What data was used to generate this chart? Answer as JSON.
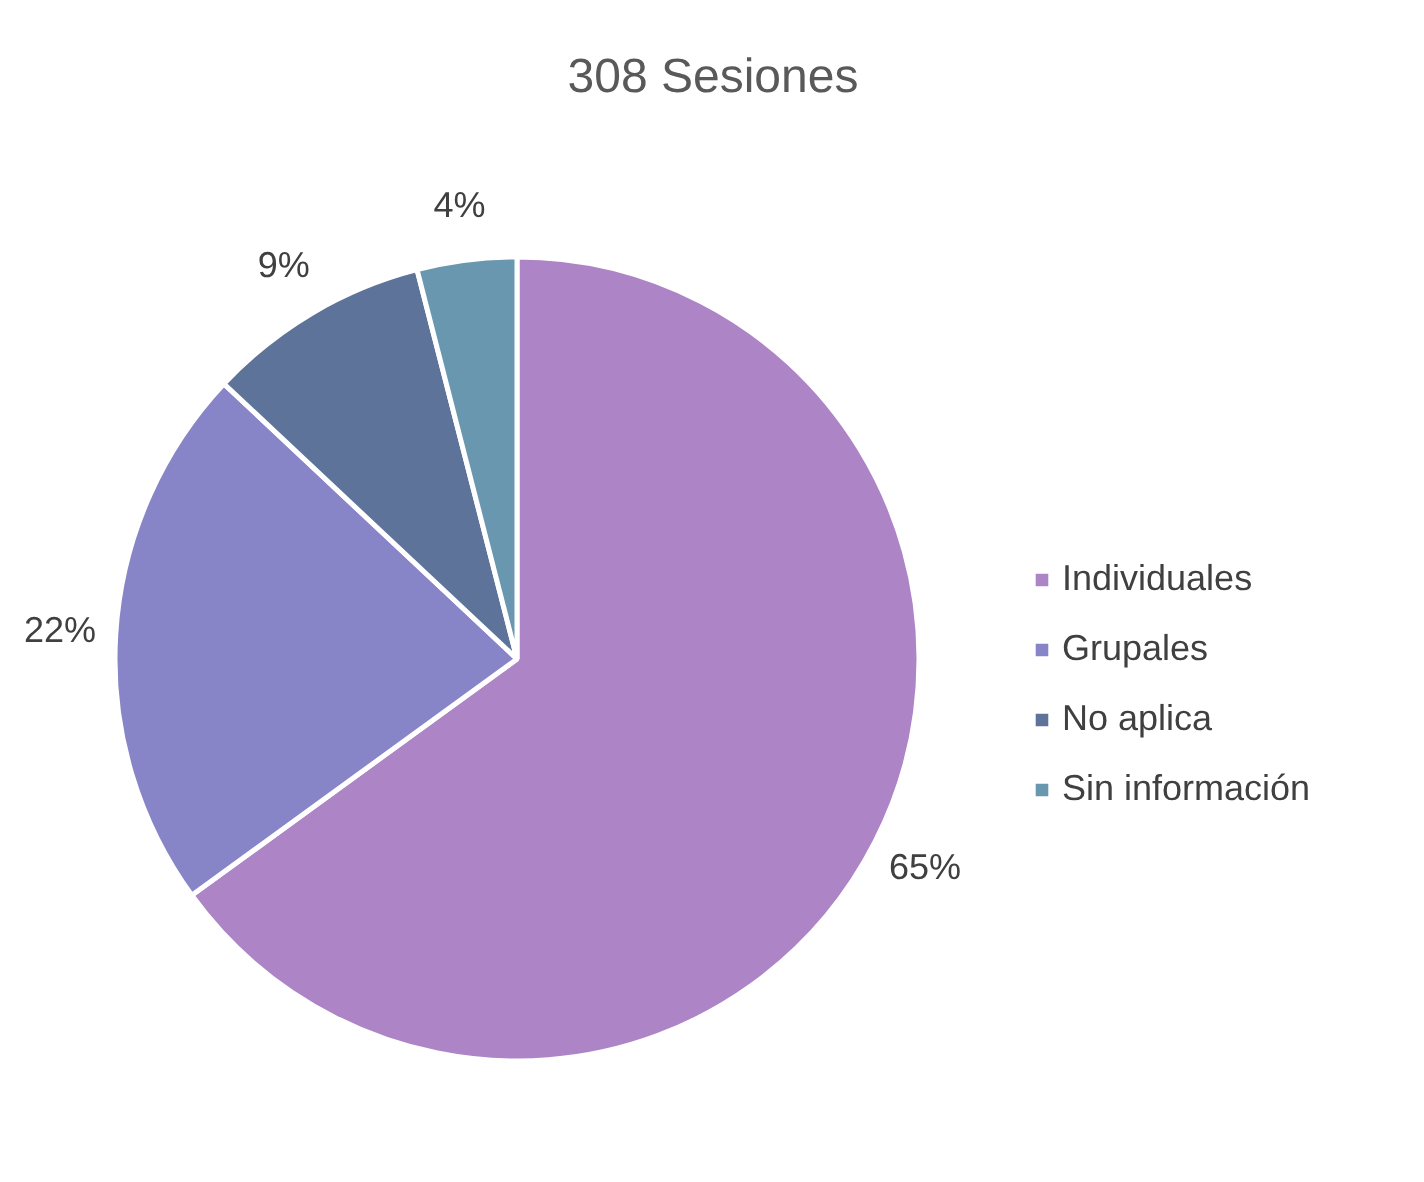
{
  "chart_data": {
    "type": "pie",
    "title": "308 Sesiones",
    "categories": [
      "Individuales",
      "Grupales",
      "No aplica",
      "Sin información"
    ],
    "values": [
      65,
      22,
      9,
      4
    ],
    "value_labels": [
      "65%",
      "22%",
      "9%",
      "4%"
    ],
    "colors": [
      "#ad84c6",
      "#8784c7",
      "#5d739a",
      "#6997af"
    ],
    "legend": "right"
  }
}
